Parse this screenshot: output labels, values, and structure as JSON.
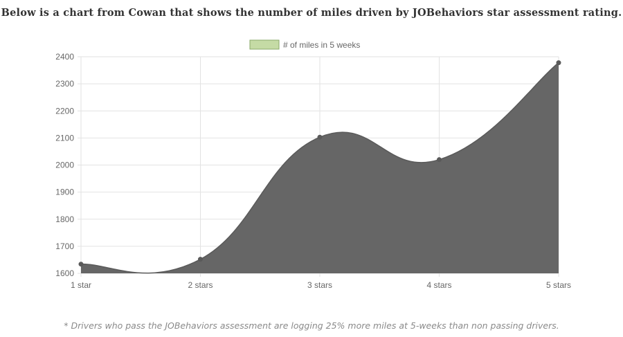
{
  "page": {
    "heading": "Below is a chart from Cowan that shows the number of miles driven by JOBehaviors star assessment rating.",
    "footnote": "* Drivers who pass the JOBehaviors assessment are logging 25% more miles at 5-weeks than non passing drivers."
  },
  "colors": {
    "area_fill": "#666666",
    "legend_swatch_fill": "#c5dba5",
    "legend_swatch_border": "#8aa86a",
    "grid": "#e2e2e2",
    "axis_text": "#666666",
    "title_text": "#333333",
    "footnote_text": "#8a8a8a"
  },
  "chart_data": {
    "type": "area",
    "categories": [
      "1 star",
      "2 stars",
      "3 stars",
      "4 stars",
      "5 stars"
    ],
    "series": [
      {
        "name": "# of miles in 5 weeks",
        "values": [
          1634,
          1652,
          2103,
          2020,
          2378
        ]
      }
    ],
    "yticks": [
      1600,
      1700,
      1800,
      1900,
      2000,
      2100,
      2200,
      2300,
      2400
    ],
    "ylim": [
      1600,
      2400
    ],
    "grid": true,
    "legend": "top-center",
    "smooth": true,
    "show_points": true
  }
}
